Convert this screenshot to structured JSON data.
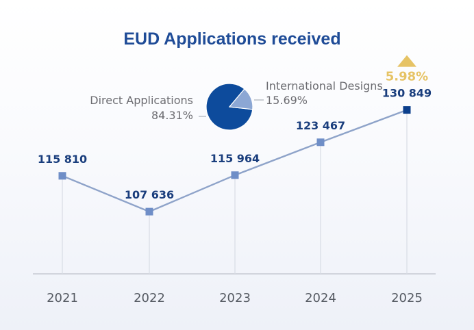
{
  "colors": {
    "title": "#1f4c97",
    "pie_main": "#0d4b9c",
    "pie_minor": "#8ca7d4",
    "line": "#8ea3c9",
    "marker": "#6f8ec7",
    "marker_last": "#0c3f8c",
    "value_text": "#1a3e7d",
    "growth": "#e6c365",
    "guide": "#d8dce4",
    "axis": "#c6cad2"
  },
  "chart_data": [
    {
      "type": "pie",
      "title": "EUD Applications received",
      "slices": [
        {
          "label": "Direct Applications",
          "value": 84.31,
          "display": "84.31%"
        },
        {
          "label": "International Designs",
          "value": 15.69,
          "display": "15.69%"
        }
      ]
    },
    {
      "type": "line",
      "categories": [
        "2021",
        "2022",
        "2023",
        "2024",
        "2025"
      ],
      "values": [
        115810,
        107636,
        115964,
        123467,
        130849
      ],
      "value_labels": [
        "115 810",
        "107 636",
        "115 964",
        "123 467",
        "130 849"
      ],
      "ylim": [
        70000,
        145000
      ],
      "growth": {
        "direction": "up",
        "label": "5.98%"
      },
      "grid": false
    }
  ]
}
